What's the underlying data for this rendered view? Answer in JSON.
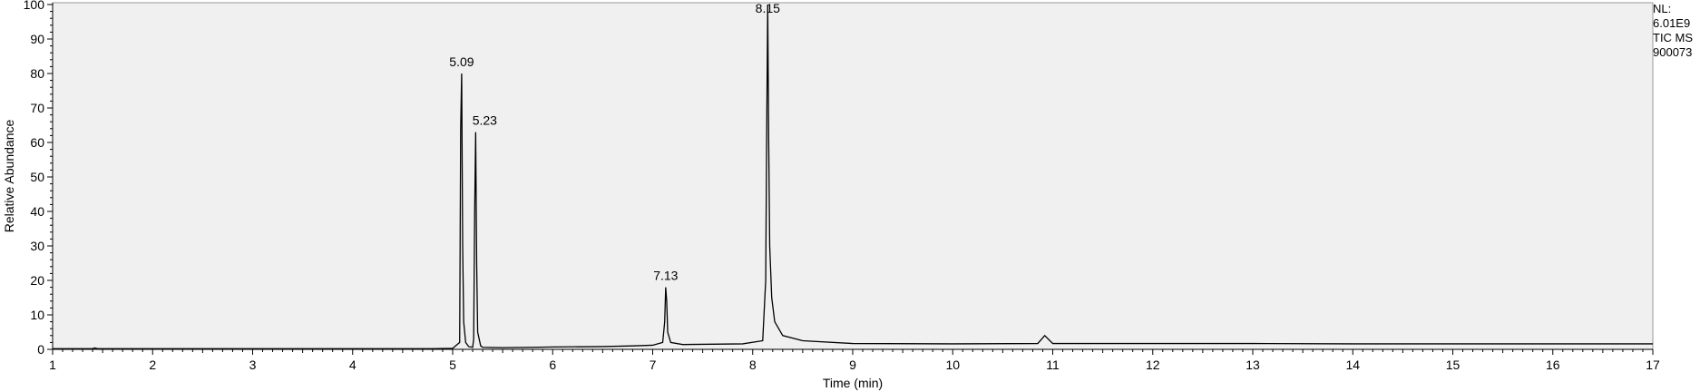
{
  "colors": {
    "plot_background": "#f0f0f0",
    "trace": "#000000",
    "axis": "#000000"
  },
  "info": {
    "nl_label": "NL:",
    "nl_value": "6.01E9",
    "scan_label": "TIC  MS",
    "sample_id": "900073"
  },
  "chart_data": {
    "type": "line",
    "title": "",
    "xlabel": "Time (min)",
    "ylabel": "Relative Abundance",
    "xlim": [
      1,
      17
    ],
    "ylim": [
      0,
      100
    ],
    "x_ticks": [
      "1",
      "2",
      "3",
      "4",
      "5",
      "6",
      "7",
      "8",
      "9",
      "10",
      "11",
      "12",
      "13",
      "14",
      "15",
      "16",
      "17"
    ],
    "y_ticks": [
      "0",
      "10",
      "20",
      "30",
      "40",
      "50",
      "60",
      "70",
      "80",
      "90",
      "100"
    ],
    "grid": false,
    "series": [
      {
        "x": [
          1.0,
          1.4,
          1.42,
          1.45,
          2.0,
          3.0,
          4.0,
          4.8,
          5.0,
          5.07,
          5.08,
          5.09,
          5.1,
          5.11,
          5.13,
          5.16,
          5.2,
          5.21,
          5.22,
          5.23,
          5.24,
          5.25,
          5.28,
          5.3,
          5.5,
          5.8,
          6.0,
          6.5,
          6.8,
          7.0,
          7.1,
          7.12,
          7.13,
          7.14,
          7.15,
          7.18,
          7.3,
          7.6,
          7.9,
          8.1,
          8.13,
          8.14,
          8.15,
          8.16,
          8.17,
          8.19,
          8.22,
          8.3,
          8.5,
          9.0,
          10.0,
          10.85,
          10.92,
          11.0,
          12.0,
          13.0,
          14.0,
          15.0,
          16.0,
          17.0
        ],
        "y": [
          0.2,
          0.2,
          0.4,
          0.2,
          0.2,
          0.2,
          0.2,
          0.2,
          0.3,
          2,
          64,
          80,
          30,
          8,
          2,
          0.8,
          0.6,
          3,
          40,
          63,
          25,
          5,
          1,
          0.6,
          0.5,
          0.6,
          0.7,
          0.8,
          1.0,
          1.2,
          2,
          8,
          18,
          14,
          5,
          2,
          1.4,
          1.5,
          1.6,
          2.5,
          20,
          64,
          100,
          60,
          30,
          15,
          8,
          4,
          2.5,
          1.7,
          1.6,
          1.7,
          4,
          1.7,
          1.7,
          1.7,
          1.6,
          1.6,
          1.6,
          1.6
        ]
      }
    ],
    "peak_labels": [
      {
        "x": 5.09,
        "y": 80,
        "text": "5.09"
      },
      {
        "x": 5.23,
        "y": 63,
        "text": "5.23"
      },
      {
        "x": 7.13,
        "y": 18,
        "text": "7.13"
      },
      {
        "x": 8.15,
        "y": 100,
        "text": "8.15"
      }
    ]
  }
}
